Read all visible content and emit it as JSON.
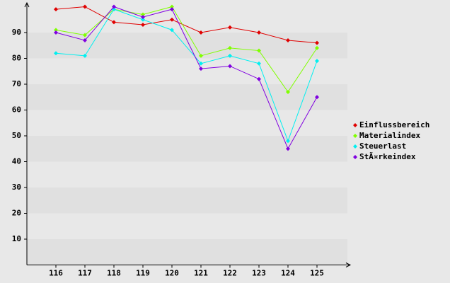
{
  "chart_data": {
    "type": "line",
    "categories": [
      "116",
      "117",
      "118",
      "119",
      "120",
      "121",
      "122",
      "123",
      "124",
      "125"
    ],
    "series": [
      {
        "name": "Einflussbereich",
        "color": "#e00000",
        "values": [
          99,
          100,
          94,
          93,
          95,
          90,
          92,
          90,
          87,
          86
        ]
      },
      {
        "name": "Materialindex",
        "color": "#80ff00",
        "values": [
          91,
          89,
          99,
          97,
          100,
          81,
          84,
          83,
          67,
          84
        ]
      },
      {
        "name": "Steuerlast",
        "color": "#00f0f0",
        "values": [
          82,
          81,
          99,
          95,
          91,
          78,
          81,
          78,
          48,
          79
        ]
      },
      {
        "name": "StÃ¤rkeindex",
        "color": "#8000e0",
        "values": [
          90,
          87,
          100,
          96,
          99,
          76,
          77,
          72,
          45,
          65
        ]
      }
    ],
    "ylim": [
      0,
      100
    ],
    "yticks": [
      10,
      20,
      30,
      40,
      50,
      60,
      70,
      80,
      90
    ],
    "grid": true,
    "legend": "right"
  }
}
